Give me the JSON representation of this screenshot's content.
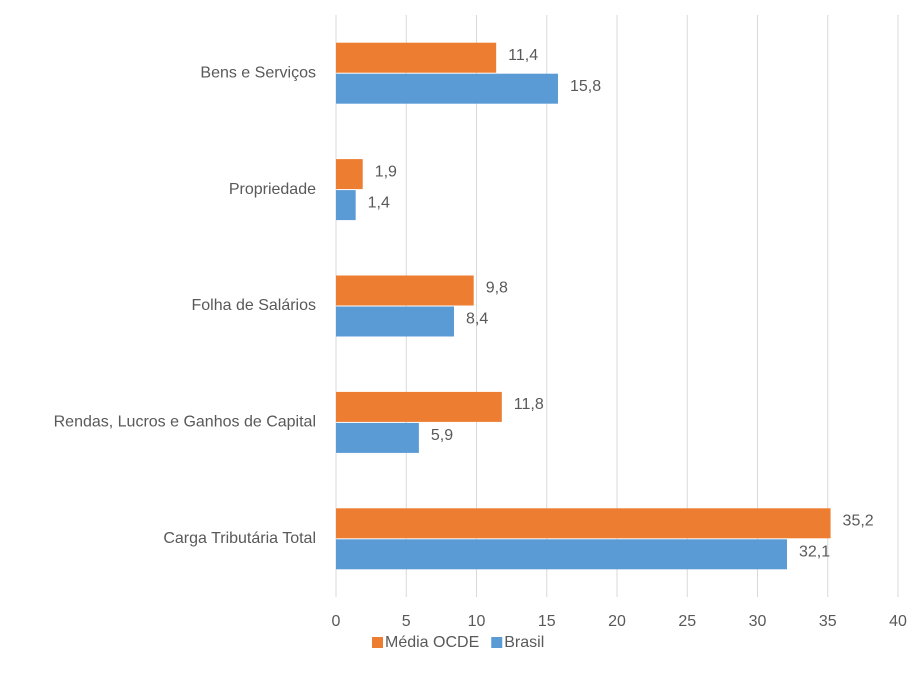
{
  "chart_data": {
    "type": "hbar",
    "categories": [
      "Bens e Serviços",
      "Propriedade",
      "Folha de Salários",
      "Rendas, Lucros e Ganhos de Capital",
      "Carga Tributária Total"
    ],
    "series": [
      {
        "name": "Média OCDE",
        "color": "#ed7d31",
        "values": [
          11.4,
          1.9,
          9.8,
          11.8,
          35.2
        ],
        "value_labels": [
          "11,4",
          "1,9",
          "9,8",
          "11,8",
          "35,2"
        ]
      },
      {
        "name": "Brasil",
        "color": "#5b9bd5",
        "values": [
          15.8,
          1.4,
          8.4,
          5.9,
          32.1
        ],
        "value_labels": [
          "15,8",
          "1,4",
          "8,4",
          "5,9",
          "32,1"
        ]
      }
    ],
    "xlim": [
      0,
      40
    ],
    "xticks": [
      0,
      5,
      10,
      15,
      20,
      25,
      30,
      35,
      40
    ],
    "grid": true,
    "legend": "bottom"
  }
}
